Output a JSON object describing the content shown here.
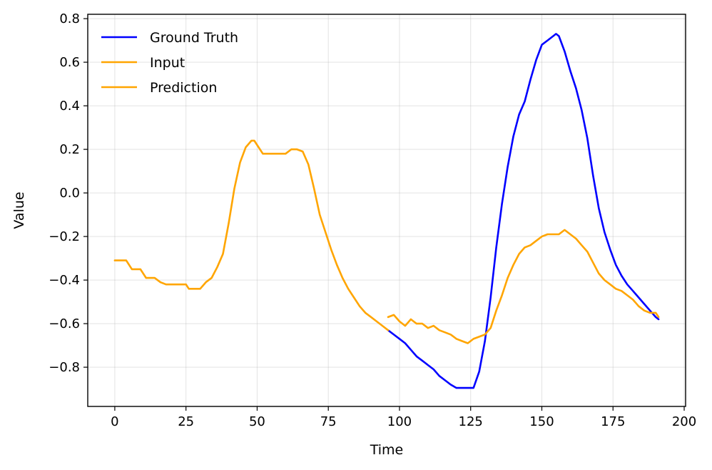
{
  "chart_data": {
    "type": "line",
    "title": "",
    "xlabel": "Time",
    "ylabel": "Value",
    "xlim": [
      -9.5,
      200.5
    ],
    "ylim": [
      -0.98,
      0.82
    ],
    "xticks": [
      0,
      25,
      50,
      75,
      100,
      125,
      150,
      175,
      200
    ],
    "xtick_labels": [
      "0",
      "25",
      "50",
      "75",
      "100",
      "125",
      "150",
      "175",
      "200"
    ],
    "yticks": [
      -0.8,
      -0.6,
      -0.4,
      -0.2,
      0.0,
      0.2,
      0.4,
      0.6,
      0.8
    ],
    "ytick_labels": [
      "−0.8",
      "−0.6",
      "−0.4",
      "−0.2",
      "0.0",
      "0.2",
      "0.4",
      "0.6",
      "0.8"
    ],
    "grid": true,
    "legend": "top-left",
    "series": [
      {
        "name": "Ground Truth",
        "color": "#0000ff",
        "x": [
          96,
          98,
          100,
          102,
          104,
          106,
          108,
          110,
          112,
          114,
          116,
          118,
          120,
          122,
          124,
          126,
          128,
          130,
          132,
          134,
          136,
          138,
          140,
          142,
          144,
          146,
          148,
          150,
          152,
          154,
          155,
          156,
          158,
          160,
          162,
          164,
          166,
          168,
          170,
          172,
          174,
          176,
          178,
          180,
          182,
          184,
          186,
          188,
          190,
          191
        ],
        "y": [
          -0.63,
          -0.65,
          -0.67,
          -0.69,
          -0.72,
          -0.75,
          -0.77,
          -0.79,
          -0.81,
          -0.84,
          -0.86,
          -0.88,
          -0.895,
          -0.895,
          -0.895,
          -0.895,
          -0.82,
          -0.68,
          -0.48,
          -0.25,
          -0.05,
          0.12,
          0.26,
          0.36,
          0.42,
          0.52,
          0.61,
          0.68,
          0.7,
          0.72,
          0.73,
          0.72,
          0.65,
          0.56,
          0.48,
          0.38,
          0.25,
          0.08,
          -0.07,
          -0.18,
          -0.26,
          -0.33,
          -0.38,
          -0.42,
          -0.45,
          -0.48,
          -0.51,
          -0.54,
          -0.57,
          -0.58
        ]
      },
      {
        "name": "Input",
        "color": "#ffa500",
        "x": [
          0,
          4,
          6,
          9,
          11,
          14,
          16,
          18,
          20,
          25,
          26,
          30,
          32,
          34,
          36,
          38,
          40,
          42,
          44,
          46,
          48,
          49,
          50,
          52,
          54,
          56,
          58,
          60,
          62,
          64,
          66,
          68,
          70,
          72,
          74,
          76,
          78,
          80,
          82,
          84,
          86,
          88,
          90,
          92,
          94,
          96
        ],
        "y": [
          -0.31,
          -0.31,
          -0.35,
          -0.35,
          -0.39,
          -0.39,
          -0.41,
          -0.42,
          -0.42,
          -0.42,
          -0.44,
          -0.44,
          -0.41,
          -0.39,
          -0.34,
          -0.28,
          -0.14,
          0.02,
          0.14,
          0.21,
          0.24,
          0.24,
          0.22,
          0.18,
          0.18,
          0.18,
          0.18,
          0.18,
          0.2,
          0.2,
          0.19,
          0.13,
          0.02,
          -0.1,
          -0.18,
          -0.26,
          -0.33,
          -0.39,
          -0.44,
          -0.48,
          -0.52,
          -0.55,
          -0.57,
          -0.59,
          -0.61,
          -0.63
        ]
      },
      {
        "name": "Prediction",
        "color": "#ffa500",
        "x": [
          96,
          98,
          100,
          102,
          104,
          106,
          108,
          110,
          112,
          114,
          116,
          118,
          120,
          122,
          124,
          126,
          128,
          130,
          132,
          134,
          136,
          138,
          140,
          142,
          144,
          146,
          148,
          150,
          152,
          154,
          156,
          158,
          160,
          162,
          164,
          166,
          168,
          170,
          172,
          174,
          176,
          178,
          180,
          182,
          184,
          186,
          188,
          190,
          191
        ],
        "y": [
          -0.57,
          -0.56,
          -0.59,
          -0.61,
          -0.58,
          -0.6,
          -0.6,
          -0.62,
          -0.61,
          -0.63,
          -0.64,
          -0.65,
          -0.67,
          -0.68,
          -0.69,
          -0.67,
          -0.66,
          -0.65,
          -0.62,
          -0.54,
          -0.47,
          -0.39,
          -0.33,
          -0.28,
          -0.25,
          -0.24,
          -0.22,
          -0.2,
          -0.19,
          -0.19,
          -0.19,
          -0.17,
          -0.19,
          -0.21,
          -0.24,
          -0.27,
          -0.32,
          -0.37,
          -0.4,
          -0.42,
          -0.44,
          -0.45,
          -0.47,
          -0.49,
          -0.52,
          -0.54,
          -0.55,
          -0.55,
          -0.57
        ]
      }
    ]
  }
}
